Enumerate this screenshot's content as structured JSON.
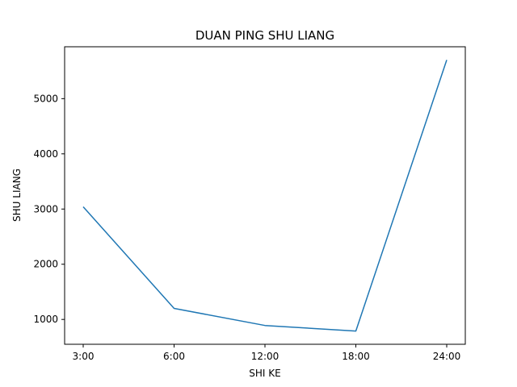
{
  "chart_data": {
    "type": "line",
    "title": "DUAN PING SHU LIANG",
    "xlabel": "SHI KE",
    "ylabel": "SHU LIANG",
    "categories": [
      "3:00",
      "6:00",
      "12:00",
      "18:00",
      "24:00"
    ],
    "series": [
      {
        "values": [
          3040,
          1200,
          890,
          790,
          5700
        ],
        "color": "#1f77b4"
      }
    ],
    "ylim": [
      550,
      5940
    ],
    "yticks": [
      1000,
      2000,
      3000,
      4000,
      5000
    ],
    "grid": false,
    "legend": "none"
  }
}
